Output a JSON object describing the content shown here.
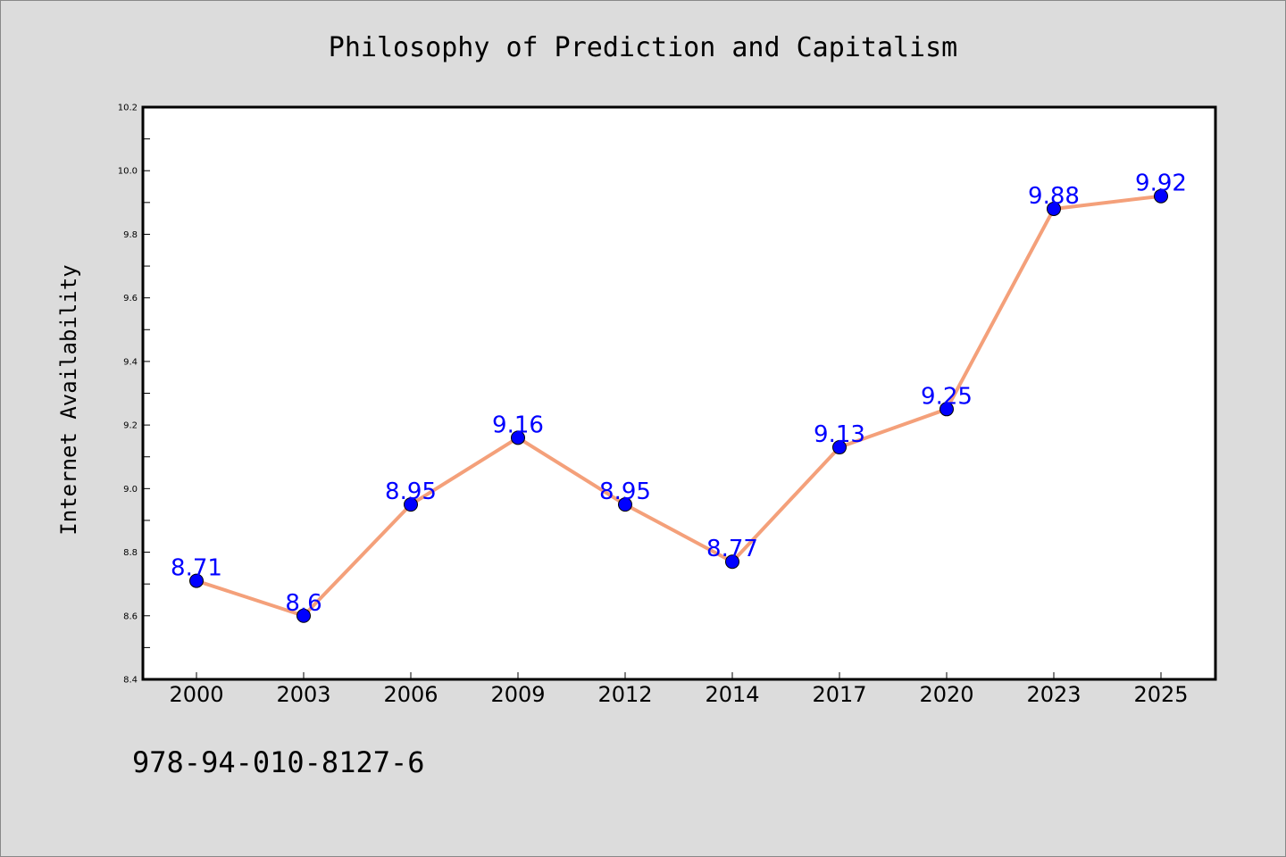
{
  "chart_data": {
    "type": "line",
    "title": "Philosophy of Prediction and Capitalism",
    "xlabel": "",
    "ylabel": "Internet Availability",
    "categories": [
      "2000",
      "2003",
      "2006",
      "2009",
      "2012",
      "2014",
      "2017",
      "2020",
      "2023",
      "2025"
    ],
    "series": [
      {
        "values": [
          8.71,
          8.6,
          8.95,
          9.16,
          8.95,
          8.77,
          9.13,
          9.25,
          9.88,
          9.92
        ],
        "data_labels": [
          "8.71",
          "8.6",
          "8.95",
          "9.16",
          "8.95",
          "8.77",
          "9.13",
          "9.25",
          "9.88",
          "9.92"
        ],
        "line_color": "#f4a07a",
        "marker_color": "#0000ff"
      }
    ],
    "ylim": [
      8.4,
      10.2
    ],
    "yticks": [
      "8.4",
      "8.6",
      "8.8",
      "9.0",
      "9.2",
      "9.4",
      "9.6",
      "9.8",
      "10.0",
      "10.2"
    ],
    "grid": false,
    "legend": "none"
  },
  "footer": {
    "isbn": "978-94-010-8127-6"
  },
  "colors": {
    "background": "#dcdcdc",
    "plot_background": "#ffffff",
    "label_color": "#0000ff"
  }
}
